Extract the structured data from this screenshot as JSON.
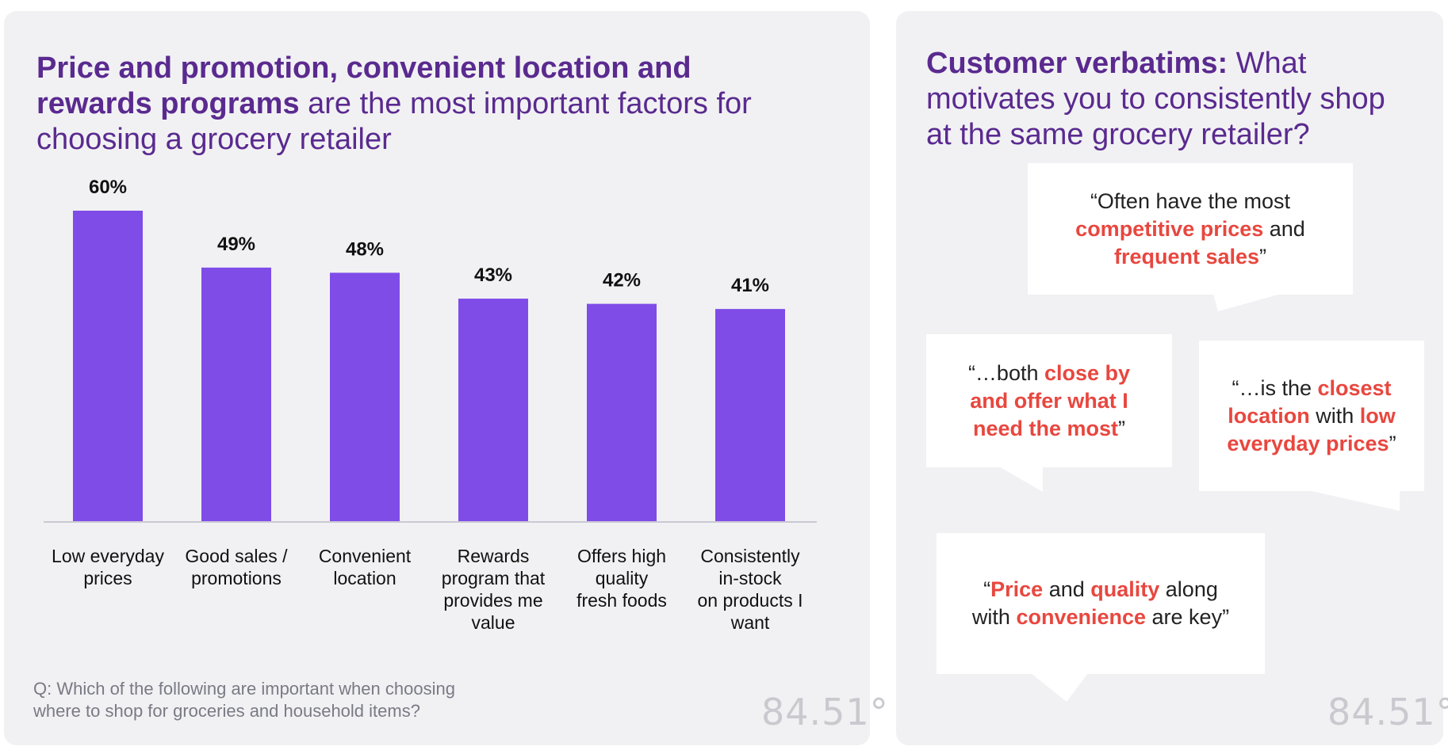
{
  "left": {
    "title": {
      "bold": "Price and promotion, convenient location and rewards programs",
      "rest": " are the most important factors for choosing a grocery retailer"
    },
    "question_line1": "Q: Which of the following are important when choosing",
    "question_line2": "where to shop for groceries and household items?",
    "logo": "84.51°"
  },
  "chart_data": {
    "type": "bar",
    "title": "Price and promotion, convenient location and rewards programs are the most important factors for choosing a grocery retailer",
    "categories": [
      "Low everyday prices",
      "Good sales / promotions",
      "Convenient location",
      "Rewards program that provides me value",
      "Offers high quality fresh foods",
      "Consistently in-stock on products I want"
    ],
    "category_lines": [
      [
        "Low everyday",
        "prices"
      ],
      [
        "Good sales /",
        "promotions"
      ],
      [
        "Convenient",
        "location"
      ],
      [
        "Rewards",
        "program that",
        "provides me",
        "value"
      ],
      [
        "Offers high",
        "quality",
        "fresh foods"
      ],
      [
        "Consistently",
        "in-stock",
        "on products I",
        "want"
      ]
    ],
    "values": [
      60,
      49,
      48,
      43,
      42,
      41
    ],
    "value_labels": [
      "60%",
      "49%",
      "48%",
      "43%",
      "42%",
      "41%"
    ],
    "xlabel": "",
    "ylabel": "",
    "ylim": [
      0,
      60
    ],
    "grid": false,
    "bar_color": "#7f4ce8"
  },
  "right": {
    "title": {
      "bold": "Customer verbatims:",
      "rest": "  What motivates you to consistently shop at the same grocery retailer?"
    },
    "logo": "84.51°",
    "quotes": [
      {
        "lines": [
          [
            {
              "t": "“Often have the most",
              "em": false
            }
          ],
          [
            {
              "t": "competitive prices",
              "em": true
            },
            {
              "t": " and",
              "em": false
            }
          ],
          [
            {
              "t": "frequent sales",
              "em": true
            },
            {
              "t": "”",
              "em": false
            }
          ]
        ]
      },
      {
        "lines": [
          [
            {
              "t": "“…both ",
              "em": false
            },
            {
              "t": "close by",
              "em": true
            }
          ],
          [
            {
              "t": "and offer what I",
              "em": true
            }
          ],
          [
            {
              "t": "need the most",
              "em": true
            },
            {
              "t": "”",
              "em": false
            }
          ]
        ]
      },
      {
        "lines": [
          [
            {
              "t": "“…is the ",
              "em": false
            },
            {
              "t": "closest",
              "em": true
            }
          ],
          [
            {
              "t": "location",
              "em": true
            },
            {
              "t": " with ",
              "em": false
            },
            {
              "t": "low",
              "em": true
            }
          ],
          [
            {
              "t": "everyday prices",
              "em": true
            },
            {
              "t": "”",
              "em": false
            }
          ]
        ]
      },
      {
        "lines": [
          [
            {
              "t": "“",
              "em": false
            },
            {
              "t": "Price",
              "em": true
            },
            {
              "t": " and ",
              "em": false
            },
            {
              "t": "quality",
              "em": true
            },
            {
              "t": " along",
              "em": false
            }
          ],
          [
            {
              "t": "with ",
              "em": false
            },
            {
              "t": "convenience",
              "em": true
            },
            {
              "t": " are key”",
              "em": false
            }
          ]
        ]
      }
    ]
  },
  "colors": {
    "title_purple": "#5a2a8f",
    "bar_purple": "#7f4ce8",
    "highlight_red": "#e8473f",
    "panel_bg": "#f1f1f3"
  }
}
